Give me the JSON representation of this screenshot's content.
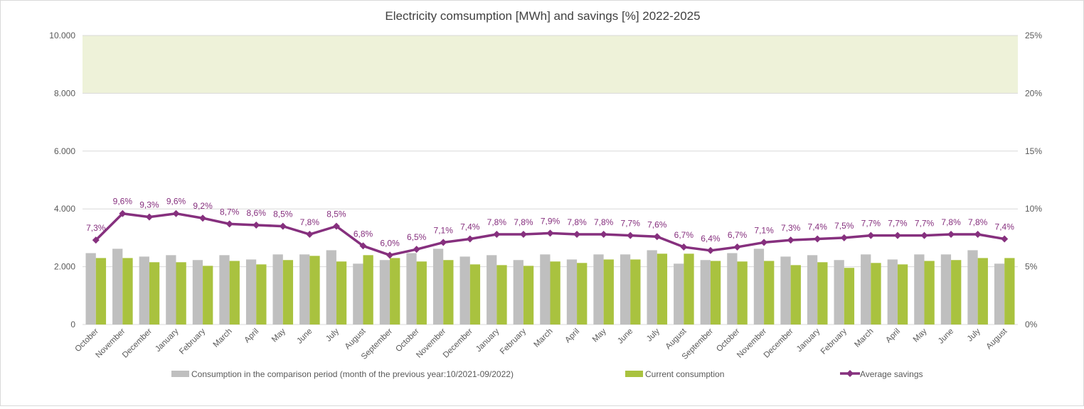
{
  "chart_data": {
    "type": "bar+line",
    "title": "Electricity comsumption [MWh] and savings [%] 2022-2025",
    "categories": [
      "October",
      "November",
      "December",
      "January",
      "February",
      "March",
      "April",
      "May",
      "June",
      "July",
      "August",
      "September",
      "October",
      "November",
      "December",
      "January",
      "February",
      "March",
      "April",
      "May",
      "June",
      "July",
      "August",
      "September",
      "October",
      "November",
      "December",
      "January",
      "February",
      "March",
      "April",
      "May",
      "June",
      "July",
      "August"
    ],
    "series": [
      {
        "name": "Consumption in the comparison period (month of the previous year:10/2021-09/2022)",
        "type": "bar",
        "axis": "left",
        "color": "#bfbfbf",
        "values": [
          2470,
          2620,
          2350,
          2400,
          2230,
          2400,
          2250,
          2425,
          2425,
          2570,
          2105,
          2230,
          2470,
          2620,
          2350,
          2400,
          2230,
          2425,
          2250,
          2425,
          2425,
          2570,
          2105,
          2230,
          2470,
          2620,
          2350,
          2400,
          2230,
          2425,
          2250,
          2425,
          2425,
          2570,
          2105
        ]
      },
      {
        "name": "Current consumption",
        "type": "bar",
        "axis": "left",
        "color": "#a9c23f",
        "values": [
          2300,
          2300,
          2155,
          2155,
          2030,
          2200,
          2080,
          2230,
          2375,
          2180,
          2400,
          2300,
          2180,
          2230,
          2080,
          2055,
          2030,
          2180,
          2130,
          2250,
          2250,
          2450,
          2450,
          2200,
          2180,
          2200,
          2055,
          2155,
          1960,
          2130,
          2080,
          2200,
          2230,
          2300,
          2300
        ]
      },
      {
        "name": "Average savings",
        "type": "line",
        "axis": "right",
        "color": "#86307e",
        "values": [
          7.3,
          9.6,
          9.3,
          9.6,
          9.2,
          8.7,
          8.6,
          8.5,
          7.8,
          8.5,
          6.8,
          6.0,
          6.5,
          7.1,
          7.4,
          7.8,
          7.8,
          7.9,
          7.8,
          7.8,
          7.7,
          7.6,
          6.7,
          6.4,
          6.7,
          7.1,
          7.3,
          7.4,
          7.5,
          7.7,
          7.7,
          7.7,
          7.8,
          7.8,
          7.4
        ],
        "labels": [
          "7,3%",
          "9,6%",
          "9,3%",
          "9,6%",
          "9,2%",
          "8,7%",
          "8,6%",
          "8,5%",
          "7,8%",
          "8,5%",
          "6,8%",
          "6,0%",
          "6,5%",
          "7,1%",
          "7,4%",
          "7,8%",
          "7,8%",
          "7,9%",
          "7,8%",
          "7,8%",
          "7,7%",
          "7,6%",
          "6,7%",
          "6,4%",
          "6,7%",
          "7,1%",
          "7,3%",
          "7,4%",
          "7,5%",
          "7,7%",
          "7,7%",
          "7,7%",
          "7,8%",
          "7,8%",
          "7,4%"
        ]
      }
    ],
    "y_left": {
      "range": [
        0,
        10000
      ],
      "ticks": [
        0,
        2000,
        4000,
        6000,
        8000,
        10000
      ],
      "tick_labels": [
        "0",
        "2.000",
        "4.000",
        "6.000",
        "8.000",
        "10.000"
      ]
    },
    "y_right": {
      "range": [
        0,
        25
      ],
      "ticks": [
        0,
        5,
        10,
        15,
        20,
        25
      ],
      "tick_labels": [
        "0%",
        "5%",
        "10%",
        "15%",
        "20%",
        "25%"
      ]
    },
    "highlight_band": {
      "from": 8000,
      "to": 10000,
      "color": "#eef2d9"
    },
    "grid": true,
    "legend": "bottom"
  }
}
